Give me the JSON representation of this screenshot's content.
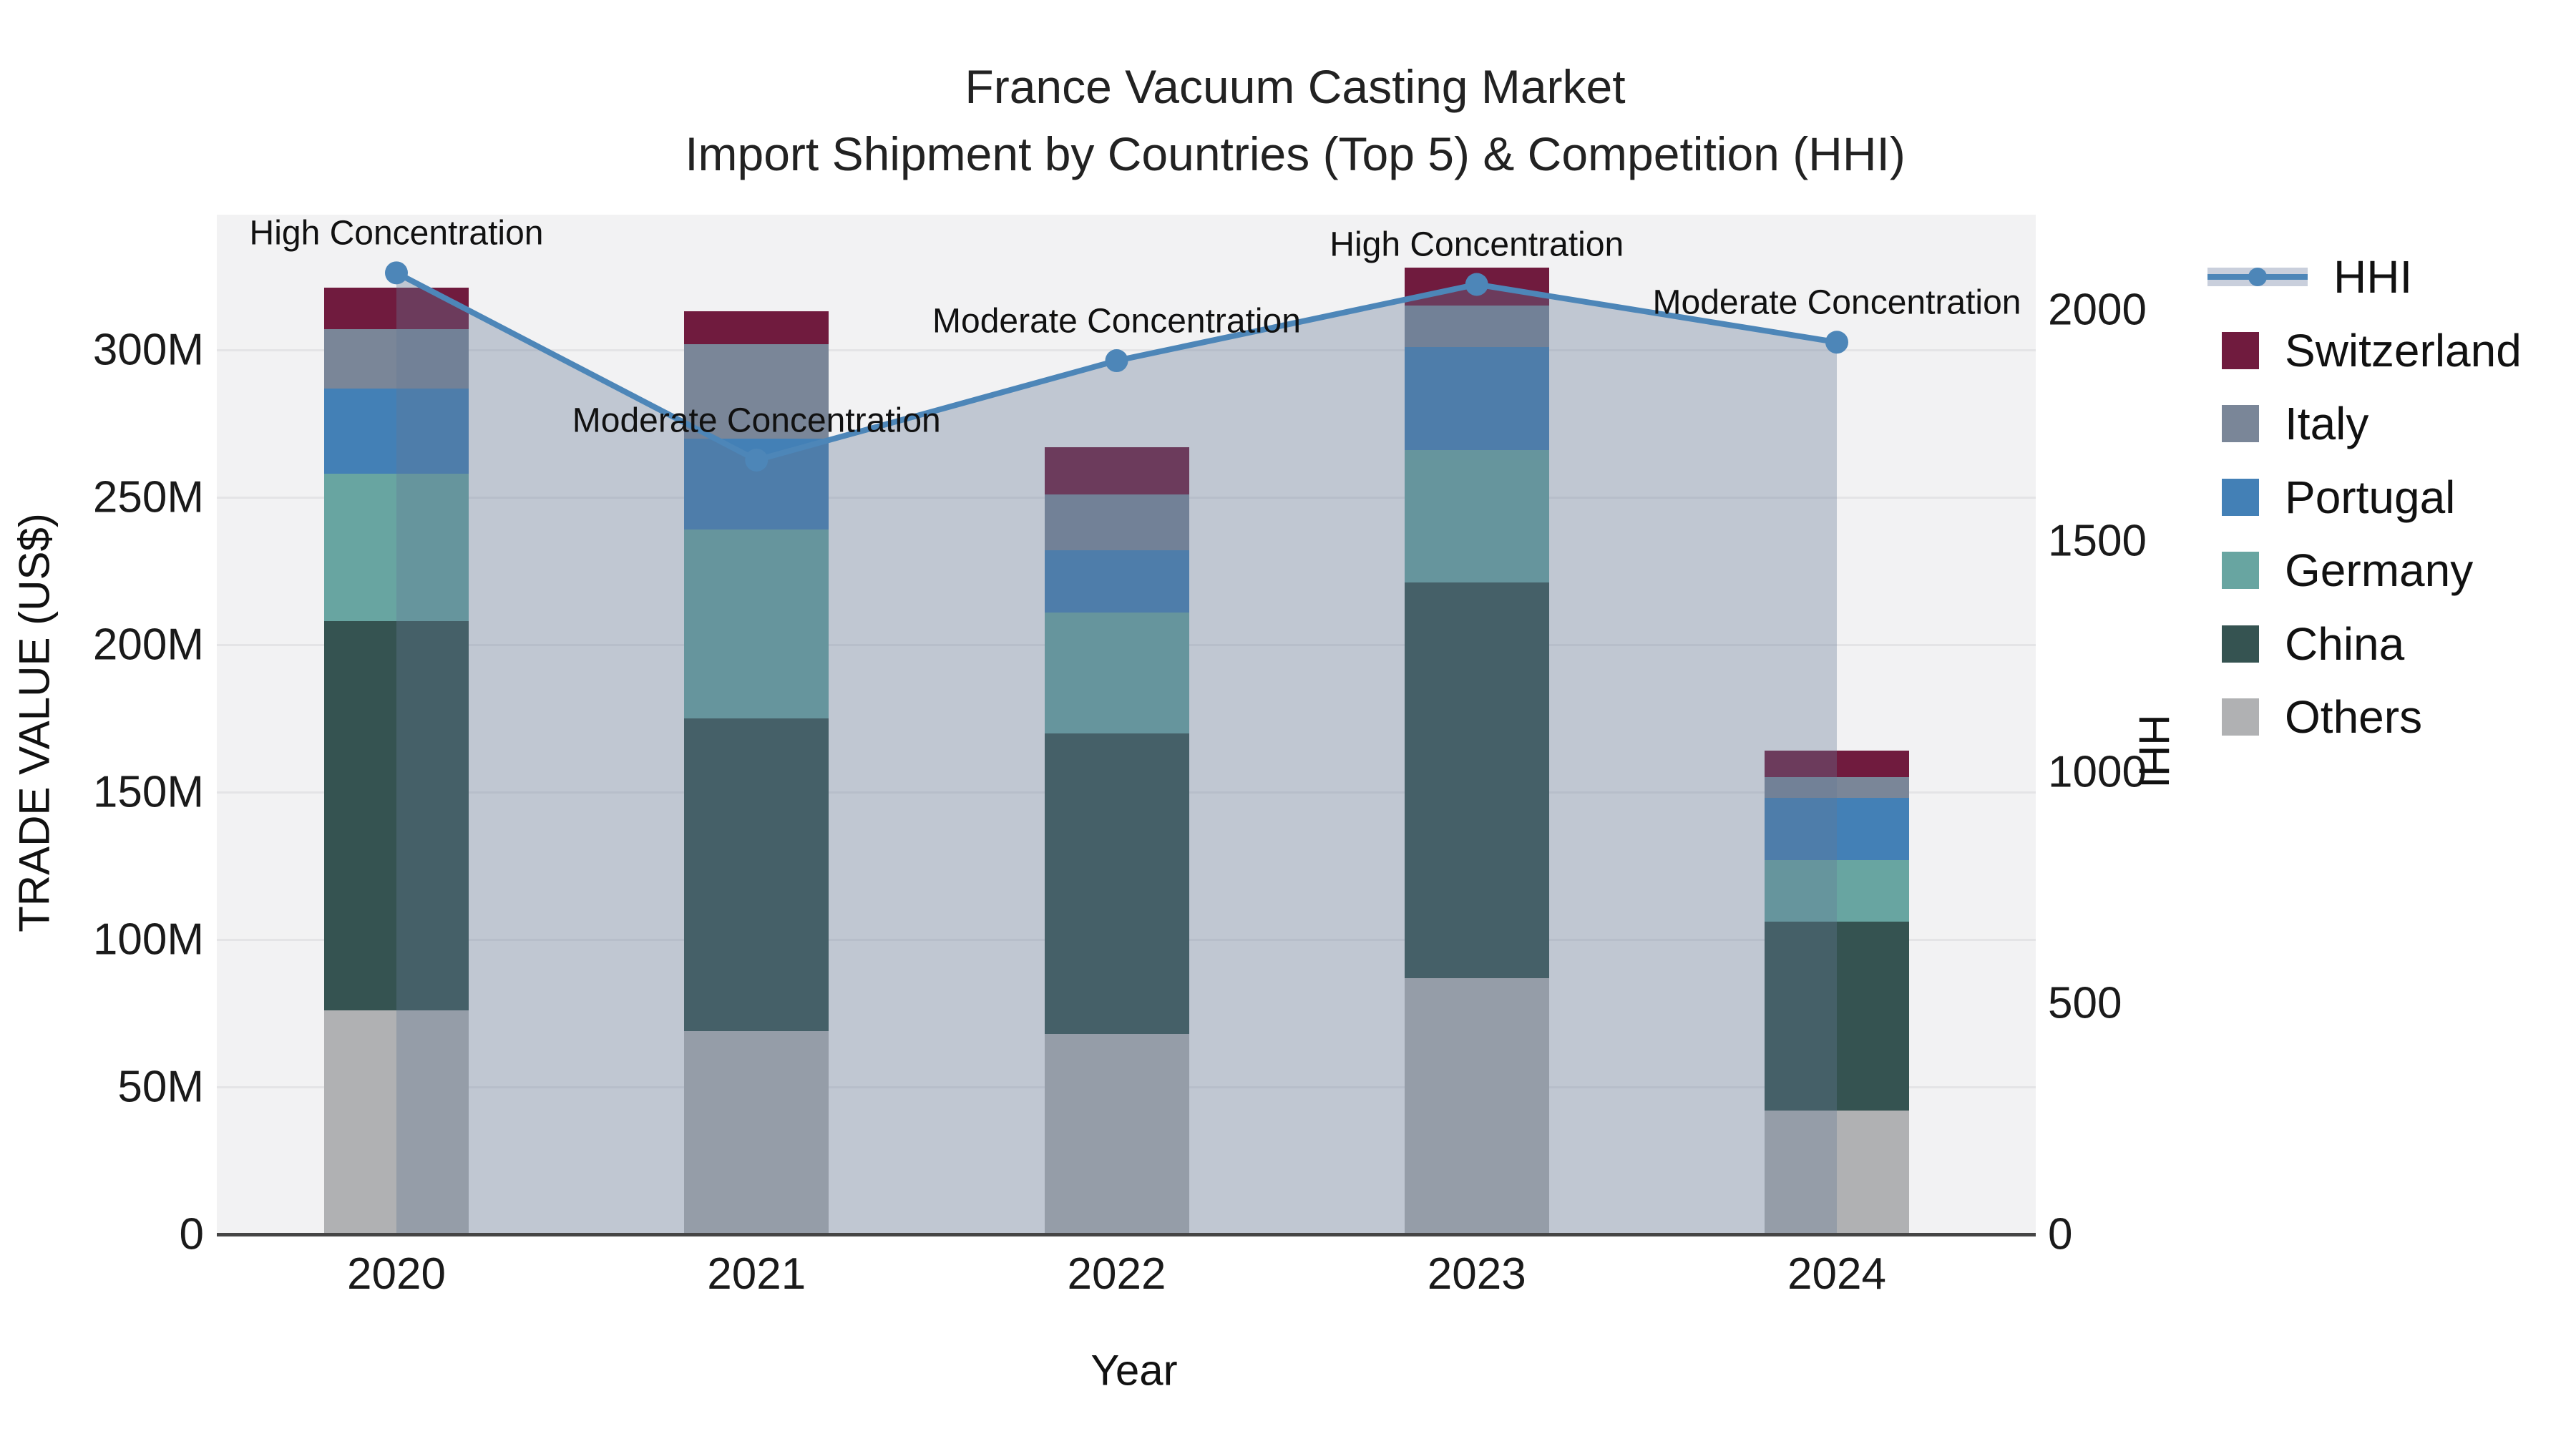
{
  "title": {
    "line1": "France Vacuum Casting Market",
    "line2": "Import Shipment by Countries (Top 5) & Competition (HHI)"
  },
  "axes": {
    "x": {
      "title": "Year",
      "categories": [
        "2020",
        "2021",
        "2022",
        "2023",
        "2024"
      ]
    },
    "y_left": {
      "title": "TRADE VALUE (US$)",
      "tick_labels": [
        "0",
        "50M",
        "100M",
        "150M",
        "200M",
        "250M",
        "300M"
      ],
      "tick_values": [
        0,
        50,
        100,
        150,
        200,
        250,
        300
      ]
    },
    "y_right": {
      "title": "HHI",
      "tick_labels": [
        "0",
        "500",
        "1000",
        "1500",
        "2000"
      ],
      "tick_values": [
        0,
        500,
        1000,
        1500,
        2000
      ]
    }
  },
  "chart_data": {
    "type": "bar",
    "subtype": "stacked-bar-with-line",
    "title": "France Vacuum Casting Market - Import Shipment by Countries (Top 5) & Competition (HHI)",
    "xlabel": "Year",
    "ylabel_left": "TRADE VALUE (US$)",
    "ylabel_right": "HHI",
    "categories": [
      "2020",
      "2021",
      "2022",
      "2023",
      "2024"
    ],
    "value_unit": "million US$",
    "ylim_left": [
      0,
      346
    ],
    "ylim_right": [
      0,
      2200
    ],
    "grid": true,
    "series": [
      {
        "name": "Others",
        "color": "#b0b1b3",
        "values": [
          76,
          69,
          68,
          87,
          42
        ]
      },
      {
        "name": "China",
        "color": "#355351",
        "values": [
          132,
          106,
          102,
          134,
          64
        ]
      },
      {
        "name": "Germany",
        "color": "#68a5a1",
        "values": [
          50,
          64,
          41,
          45,
          21
        ]
      },
      {
        "name": "Portugal",
        "color": "#4380b6",
        "values": [
          29,
          31,
          21,
          35,
          21
        ]
      },
      {
        "name": "Italy",
        "color": "#7a8698",
        "values": [
          20,
          32,
          19,
          14,
          7
        ]
      },
      {
        "name": "Switzerland",
        "color": "#701b3e",
        "values": [
          14,
          11,
          16,
          13,
          9
        ]
      }
    ],
    "line_series": {
      "name": "HHI",
      "axis": "right",
      "color": "#4d86b8",
      "fill": "tozeroy",
      "fill_color": "rgba(100,120,150,0.35)",
      "values": [
        2080,
        1675,
        1890,
        2055,
        1930
      ]
    },
    "annotations": [
      {
        "category": "2020",
        "text": "High Concentration"
      },
      {
        "category": "2021",
        "text": "Moderate Concentration"
      },
      {
        "category": "2022",
        "text": "Moderate Concentration"
      },
      {
        "category": "2023",
        "text": "High Concentration"
      },
      {
        "category": "2024",
        "text": "Moderate Concentration"
      }
    ],
    "legend_position": "right"
  },
  "legend": {
    "items": [
      {
        "label": "HHI",
        "type": "line"
      },
      {
        "label": "Switzerland",
        "type": "square"
      },
      {
        "label": "Italy",
        "type": "square"
      },
      {
        "label": "Portugal",
        "type": "square"
      },
      {
        "label": "Germany",
        "type": "square"
      },
      {
        "label": "China",
        "type": "square"
      },
      {
        "label": "Others",
        "type": "square"
      }
    ]
  }
}
